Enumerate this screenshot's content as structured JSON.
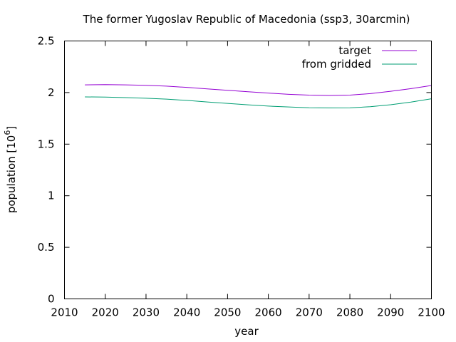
{
  "chart_data": {
    "type": "line",
    "title": "The former Yugoslav Republic of Macedonia (ssp3, 30arcmin)",
    "xlabel": "year",
    "ylabel": "population [10^6]",
    "ylabel_base": "population [10",
    "ylabel_exp": "6",
    "ylabel_close": "]",
    "xlim": [
      2010,
      2100
    ],
    "ylim": [
      0,
      2.5
    ],
    "x_ticks": [
      2010,
      2020,
      2030,
      2040,
      2050,
      2060,
      2070,
      2080,
      2090,
      2100
    ],
    "y_ticks": [
      0,
      0.5,
      1,
      1.5,
      2,
      2.5
    ],
    "x_tick_labels": [
      "2010",
      "2020",
      "2030",
      "2040",
      "2050",
      "2060",
      "2070",
      "2080",
      "2090",
      "2100"
    ],
    "y_tick_labels": [
      "0",
      "0.5",
      "1",
      "1.5",
      "2",
      "2.5"
    ],
    "grid": false,
    "legend_position": "top-right",
    "x": [
      2015,
      2020,
      2025,
      2030,
      2035,
      2040,
      2045,
      2050,
      2055,
      2060,
      2065,
      2070,
      2075,
      2080,
      2085,
      2090,
      2095,
      2100
    ],
    "series": [
      {
        "name": "target",
        "color": "#9400d3",
        "values": [
          2.074,
          2.077,
          2.074,
          2.07,
          2.062,
          2.05,
          2.036,
          2.022,
          2.008,
          1.995,
          1.983,
          1.975,
          1.972,
          1.975,
          1.99,
          2.012,
          2.038,
          2.068
        ]
      },
      {
        "name": "from gridded",
        "color": "#009e73",
        "values": [
          1.958,
          1.956,
          1.951,
          1.945,
          1.936,
          1.924,
          1.909,
          1.895,
          1.881,
          1.869,
          1.86,
          1.853,
          1.851,
          1.852,
          1.863,
          1.882,
          1.908,
          1.94
        ]
      }
    ]
  }
}
